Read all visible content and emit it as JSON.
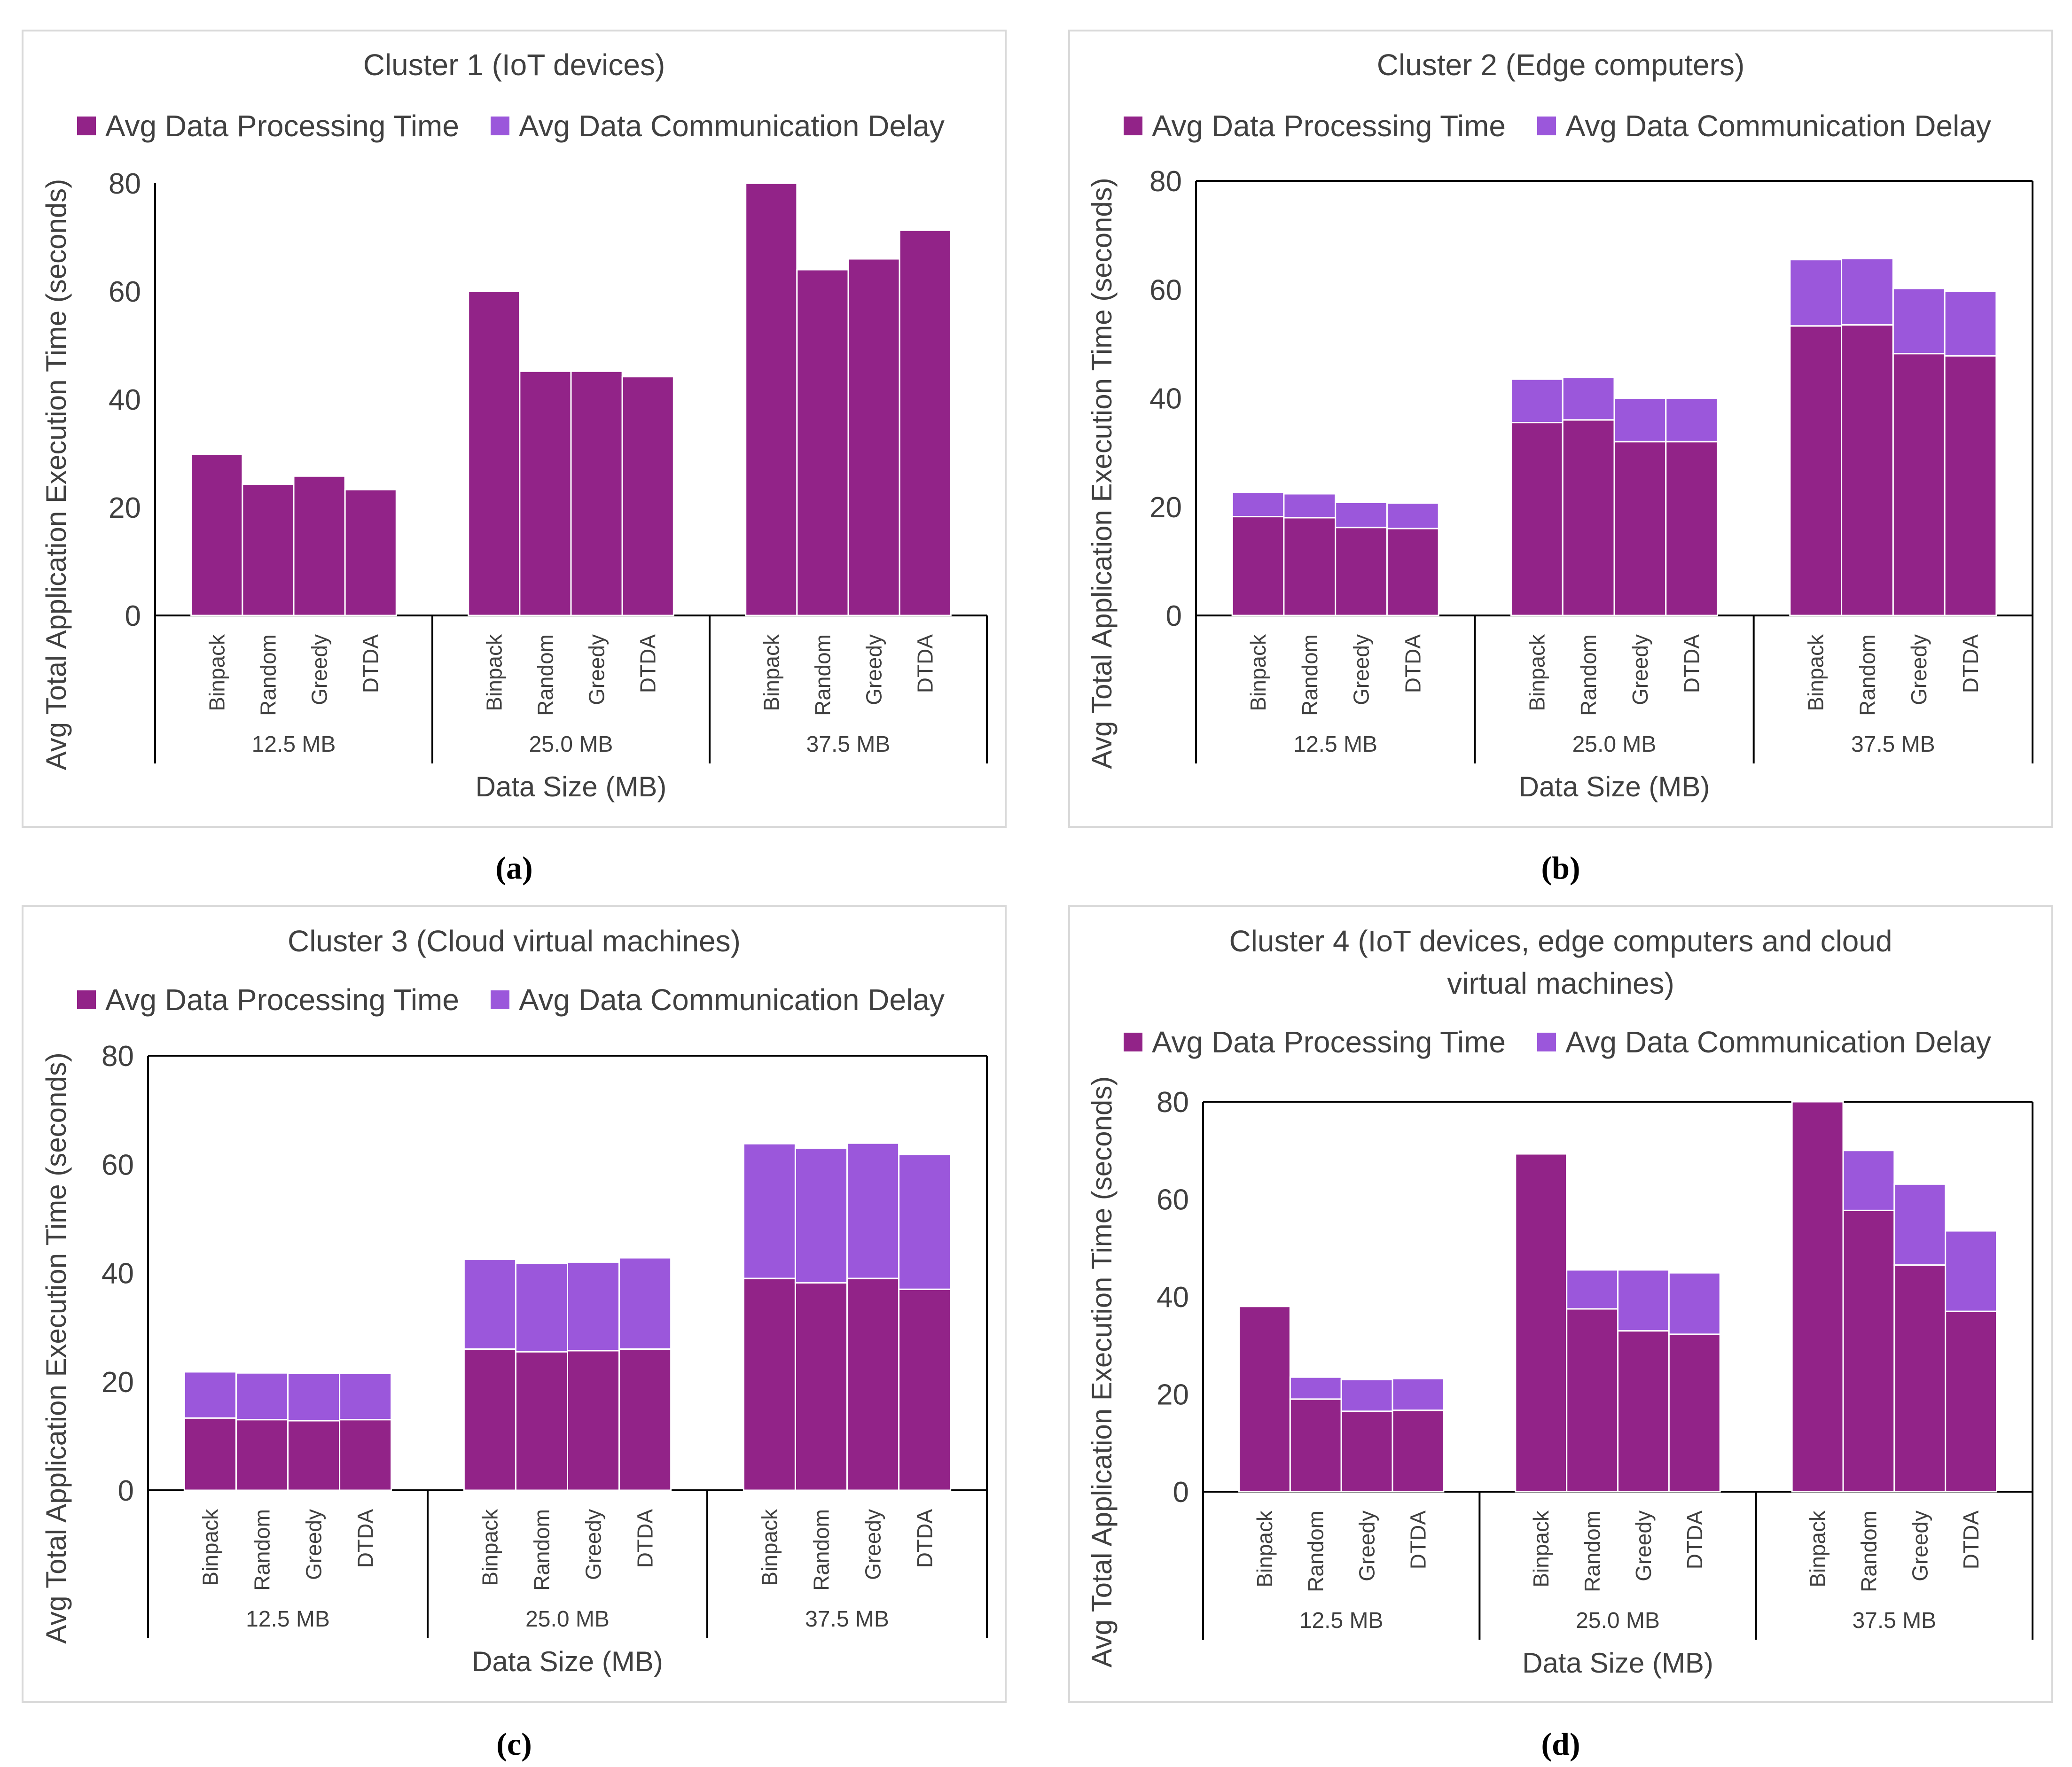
{
  "colors": {
    "processing": "#922388",
    "communication": "#9B57DB",
    "frame": "#d9d9d9",
    "axis": "#000000",
    "text": "#404040"
  },
  "groups": [
    "12.5 MB",
    "25.0 MB",
    "37.5 MB"
  ],
  "methods": [
    "Binpack",
    "Random",
    "Greedy",
    "DTDA"
  ],
  "chart_data": [
    {
      "type": "bar",
      "stacked": true,
      "panel_label": "(a)",
      "title": "Cluster 1 (IoT devices)",
      "xlabel": "Data Size (MB)",
      "ylabel": "Avg Total Application Execution Time (seconds)",
      "ylim": [
        0,
        80
      ],
      "yticks": [
        0,
        20,
        40,
        60,
        80
      ],
      "groups": [
        "12.5 MB",
        "25.0 MB",
        "37.5 MB"
      ],
      "categories": [
        "Binpack",
        "Random",
        "Greedy",
        "DTDA"
      ],
      "series": [
        {
          "name": "Avg Data Processing Time",
          "values": [
            [
              29.8,
              24.3,
              25.8,
              23.3
            ],
            [
              60.0,
              45.2,
              45.2,
              44.2
            ],
            [
              80.0,
              64.0,
              66.0,
              71.3
            ]
          ]
        },
        {
          "name": "Avg Data Communication Delay",
          "values": [
            [
              0,
              0,
              0,
              0
            ],
            [
              0,
              0,
              0,
              0
            ],
            [
              0,
              0,
              0,
              0
            ]
          ]
        }
      ]
    },
    {
      "type": "bar",
      "stacked": true,
      "panel_label": "(b)",
      "title": "Cluster 2 (Edge computers)",
      "xlabel": "Data Size (MB)",
      "ylabel": "Avg Total Application Execution Time (seconds)",
      "ylim": [
        0,
        80
      ],
      "yticks": [
        0,
        20,
        40,
        60,
        80
      ],
      "groups": [
        "12.5 MB",
        "25.0 MB",
        "37.5 MB"
      ],
      "categories": [
        "Binpack",
        "Random",
        "Greedy",
        "DTDA"
      ],
      "series": [
        {
          "name": "Avg Data Processing Time",
          "values": [
            [
              18.2,
              18.0,
              16.2,
              16.0
            ],
            [
              35.5,
              36.0,
              32.0,
              32.0
            ],
            [
              53.3,
              53.5,
              48.2,
              47.8
            ]
          ]
        },
        {
          "name": "Avg Data Communication Delay",
          "values": [
            [
              4.5,
              4.4,
              4.6,
              4.7
            ],
            [
              8.0,
              7.8,
              8.0,
              8.0
            ],
            [
              12.2,
              12.2,
              12.0,
              11.9
            ]
          ]
        }
      ]
    },
    {
      "type": "bar",
      "stacked": true,
      "panel_label": "(c)",
      "title": "Cluster 3 (Cloud virtual machines)",
      "xlabel": "Data Size (MB)",
      "ylabel": "Avg Total Application Execution Time (seconds)",
      "ylim": [
        0,
        80
      ],
      "yticks": [
        0,
        20,
        40,
        60,
        80
      ],
      "groups": [
        "12.5 MB",
        "25.0 MB",
        "37.5 MB"
      ],
      "categories": [
        "Binpack",
        "Random",
        "Greedy",
        "DTDA"
      ],
      "series": [
        {
          "name": "Avg Data Processing Time",
          "values": [
            [
              13.3,
              13.0,
              12.8,
              13.0
            ],
            [
              26.0,
              25.5,
              25.7,
              26.0
            ],
            [
              39.0,
              38.2,
              39.0,
              37.0
            ]
          ]
        },
        {
          "name": "Avg Data Communication Delay",
          "values": [
            [
              8.5,
              8.6,
              8.7,
              8.5
            ],
            [
              16.5,
              16.3,
              16.3,
              16.8
            ],
            [
              24.8,
              24.8,
              24.9,
              24.8
            ]
          ]
        }
      ]
    },
    {
      "type": "bar",
      "stacked": true,
      "panel_label": "(d)",
      "title": "Cluster 4 (IoT devices, edge computers and cloud virtual machines)",
      "title_lines": [
        "Cluster 4 (IoT devices, edge computers and cloud",
        "virtual machines)"
      ],
      "xlabel": "Data Size (MB)",
      "ylabel": "Avg Total Application Execution Time (seconds)",
      "ylim": [
        0,
        80
      ],
      "yticks": [
        0,
        20,
        40,
        60,
        80
      ],
      "groups": [
        "12.5 MB",
        "25.0 MB",
        "37.5 MB"
      ],
      "categories": [
        "Binpack",
        "Random",
        "Greedy",
        "DTDA"
      ],
      "series": [
        {
          "name": "Avg Data Processing Time",
          "values": [
            [
              38.0,
              19.0,
              16.5,
              16.7
            ],
            [
              69.3,
              37.5,
              33.0,
              32.3
            ],
            [
              80.0,
              57.7,
              46.5,
              37.0
            ]
          ]
        },
        {
          "name": "Avg Data Communication Delay",
          "values": [
            [
              0,
              4.5,
              6.5,
              6.5
            ],
            [
              0,
              8.0,
              12.5,
              12.6
            ],
            [
              0,
              12.3,
              16.6,
              16.5
            ]
          ]
        }
      ]
    }
  ]
}
